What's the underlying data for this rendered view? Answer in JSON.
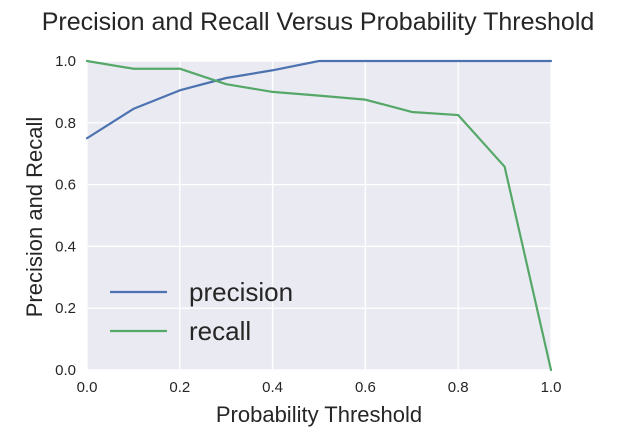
{
  "chart_data": {
    "type": "line",
    "title": "Precision and Recall Versus Probability Threshold",
    "xlabel": "Probability Threshold",
    "ylabel": "Precision and Recall",
    "xlim": [
      0.0,
      1.0
    ],
    "ylim": [
      0.0,
      1.0
    ],
    "xticks": [
      "0.0",
      "0.2",
      "0.4",
      "0.6",
      "0.8",
      "1.0"
    ],
    "yticks": [
      "0.0",
      "0.2",
      "0.4",
      "0.6",
      "0.8",
      "1.0"
    ],
    "grid": true,
    "background_color": "#eaeaf2",
    "legend_position": "lower-left",
    "x": [
      0.0,
      0.1,
      0.2,
      0.3,
      0.4,
      0.5,
      0.6,
      0.7,
      0.8,
      0.9,
      1.0
    ],
    "series": [
      {
        "name": "precision",
        "color": "#4c72b0",
        "values": [
          0.75,
          0.845,
          0.905,
          0.945,
          0.97,
          1.0,
          1.0,
          1.0,
          1.0,
          1.0,
          1.0
        ]
      },
      {
        "name": "recall",
        "color": "#55a868",
        "values": [
          1.0,
          0.975,
          0.975,
          0.925,
          0.9,
          0.888,
          0.875,
          0.835,
          0.825,
          0.658,
          0.0
        ]
      }
    ]
  }
}
